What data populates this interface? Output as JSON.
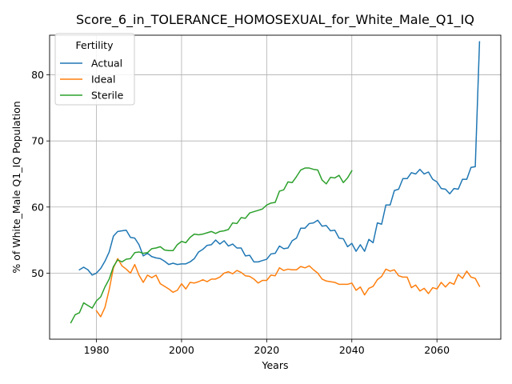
{
  "chart_data": {
    "type": "line",
    "title": "Score_6_in_TOLERANCE_HOMOSEXUAL_for_White_Male_Q1_IQ",
    "xlabel": "Years",
    "ylabel": "% of White_Male Q1_IQ Population",
    "xlim": [
      1969,
      2075
    ],
    "ylim": [
      40,
      86
    ],
    "xticks": [
      1980,
      2000,
      2020,
      2040,
      2060
    ],
    "yticks": [
      50,
      60,
      70,
      80
    ],
    "grid": true,
    "legend": {
      "title": "Fertility",
      "position": "upper-left"
    },
    "series": [
      {
        "name": "Actual",
        "color": "#1f77b4",
        "points": [
          [
            1976,
            50.5
          ],
          [
            1977,
            50.9
          ],
          [
            1978,
            50.5
          ],
          [
            1979,
            49.7
          ],
          [
            1980,
            50.0
          ],
          [
            1981,
            50.7
          ],
          [
            1982,
            51.8
          ],
          [
            1983,
            53.2
          ],
          [
            1984,
            55.6
          ],
          [
            1985,
            56.3
          ],
          [
            1986,
            56.4
          ],
          [
            1987,
            56.5
          ],
          [
            1988,
            55.4
          ],
          [
            1989,
            55.3
          ],
          [
            1990,
            54.3
          ],
          [
            1991,
            52.6
          ],
          [
            1992,
            53.0
          ],
          [
            1993,
            52.5
          ],
          [
            1994,
            52.3
          ],
          [
            1995,
            52.2
          ],
          [
            1996,
            51.8
          ],
          [
            1997,
            51.3
          ],
          [
            1998,
            51.5
          ],
          [
            1999,
            51.3
          ],
          [
            2000,
            51.4
          ],
          [
            2001,
            51.4
          ],
          [
            2002,
            51.7
          ],
          [
            2003,
            52.2
          ],
          [
            2004,
            53.2
          ],
          [
            2005,
            53.6
          ],
          [
            2006,
            54.2
          ],
          [
            2007,
            54.3
          ],
          [
            2008,
            55.0
          ],
          [
            2009,
            54.4
          ],
          [
            2010,
            54.9
          ],
          [
            2011,
            54.1
          ],
          [
            2012,
            54.4
          ],
          [
            2013,
            53.8
          ],
          [
            2014,
            53.8
          ],
          [
            2015,
            52.6
          ],
          [
            2016,
            52.7
          ],
          [
            2017,
            51.7
          ],
          [
            2018,
            51.7
          ],
          [
            2019,
            51.9
          ],
          [
            2020,
            52.1
          ],
          [
            2021,
            52.9
          ],
          [
            2022,
            53.0
          ],
          [
            2023,
            54.1
          ],
          [
            2024,
            53.7
          ],
          [
            2025,
            53.8
          ],
          [
            2026,
            54.9
          ],
          [
            2027,
            55.3
          ],
          [
            2028,
            56.8
          ],
          [
            2029,
            56.8
          ],
          [
            2030,
            57.5
          ],
          [
            2031,
            57.6
          ],
          [
            2032,
            58.0
          ],
          [
            2033,
            57.1
          ],
          [
            2034,
            57.2
          ],
          [
            2035,
            56.4
          ],
          [
            2036,
            56.5
          ],
          [
            2037,
            55.3
          ],
          [
            2038,
            55.2
          ],
          [
            2039,
            54.0
          ],
          [
            2040,
            54.5
          ],
          [
            2041,
            53.3
          ],
          [
            2042,
            54.3
          ],
          [
            2043,
            53.3
          ],
          [
            2044,
            55.1
          ],
          [
            2045,
            54.6
          ],
          [
            2046,
            57.6
          ],
          [
            2047,
            57.4
          ],
          [
            2048,
            60.3
          ],
          [
            2049,
            60.3
          ],
          [
            2050,
            62.5
          ],
          [
            2051,
            62.7
          ],
          [
            2052,
            64.3
          ],
          [
            2053,
            64.3
          ],
          [
            2054,
            65.2
          ],
          [
            2055,
            65.0
          ],
          [
            2056,
            65.7
          ],
          [
            2057,
            65.0
          ],
          [
            2058,
            65.3
          ],
          [
            2059,
            64.2
          ],
          [
            2060,
            63.8
          ],
          [
            2061,
            62.8
          ],
          [
            2062,
            62.7
          ],
          [
            2063,
            62.0
          ],
          [
            2064,
            62.8
          ],
          [
            2065,
            62.7
          ],
          [
            2066,
            64.2
          ],
          [
            2067,
            64.2
          ],
          [
            2068,
            66.0
          ],
          [
            2069,
            66.1
          ],
          [
            2070,
            85.0
          ]
        ]
      },
      {
        "name": "Ideal",
        "color": "#ff7f0e",
        "points": [
          [
            1980,
            44.3
          ],
          [
            1981,
            43.4
          ],
          [
            1982,
            44.8
          ],
          [
            1983,
            47.5
          ],
          [
            1984,
            50.8
          ],
          [
            1985,
            52.2
          ],
          [
            1986,
            51.1
          ],
          [
            1987,
            50.6
          ],
          [
            1988,
            50.0
          ],
          [
            1989,
            51.3
          ],
          [
            1990,
            49.7
          ],
          [
            1991,
            48.6
          ],
          [
            1992,
            49.7
          ],
          [
            1993,
            49.3
          ],
          [
            1994,
            49.7
          ],
          [
            1995,
            48.4
          ],
          [
            1996,
            48.0
          ],
          [
            1997,
            47.6
          ],
          [
            1998,
            47.1
          ],
          [
            1999,
            47.4
          ],
          [
            2000,
            48.4
          ],
          [
            2001,
            47.6
          ],
          [
            2002,
            48.6
          ],
          [
            2003,
            48.5
          ],
          [
            2004,
            48.7
          ],
          [
            2005,
            49.0
          ],
          [
            2006,
            48.7
          ],
          [
            2007,
            49.1
          ],
          [
            2008,
            49.1
          ],
          [
            2009,
            49.4
          ],
          [
            2010,
            50.0
          ],
          [
            2011,
            50.2
          ],
          [
            2012,
            49.9
          ],
          [
            2013,
            50.4
          ],
          [
            2014,
            50.1
          ],
          [
            2015,
            49.6
          ],
          [
            2016,
            49.5
          ],
          [
            2017,
            49.1
          ],
          [
            2018,
            48.5
          ],
          [
            2019,
            48.9
          ],
          [
            2020,
            48.9
          ],
          [
            2021,
            49.7
          ],
          [
            2022,
            49.6
          ],
          [
            2023,
            50.8
          ],
          [
            2024,
            50.4
          ],
          [
            2025,
            50.6
          ],
          [
            2026,
            50.5
          ],
          [
            2027,
            50.5
          ],
          [
            2028,
            51.0
          ],
          [
            2029,
            50.8
          ],
          [
            2030,
            51.1
          ],
          [
            2031,
            50.5
          ],
          [
            2032,
            50.0
          ],
          [
            2033,
            49.1
          ],
          [
            2034,
            48.8
          ],
          [
            2035,
            48.7
          ],
          [
            2036,
            48.6
          ],
          [
            2037,
            48.3
          ],
          [
            2038,
            48.3
          ],
          [
            2039,
            48.3
          ],
          [
            2040,
            48.5
          ],
          [
            2041,
            47.4
          ],
          [
            2042,
            47.9
          ],
          [
            2043,
            46.7
          ],
          [
            2044,
            47.7
          ],
          [
            2045,
            48.0
          ],
          [
            2046,
            49.0
          ],
          [
            2047,
            49.5
          ],
          [
            2048,
            50.6
          ],
          [
            2049,
            50.3
          ],
          [
            2050,
            50.5
          ],
          [
            2051,
            49.6
          ],
          [
            2052,
            49.4
          ],
          [
            2053,
            49.4
          ],
          [
            2054,
            47.8
          ],
          [
            2055,
            48.2
          ],
          [
            2056,
            47.3
          ],
          [
            2057,
            47.7
          ],
          [
            2058,
            46.9
          ],
          [
            2059,
            47.8
          ],
          [
            2060,
            47.6
          ],
          [
            2061,
            48.6
          ],
          [
            2062,
            47.9
          ],
          [
            2063,
            48.6
          ],
          [
            2064,
            48.3
          ],
          [
            2065,
            49.8
          ],
          [
            2066,
            49.2
          ],
          [
            2067,
            50.3
          ],
          [
            2068,
            49.4
          ],
          [
            2069,
            49.2
          ],
          [
            2070,
            48.0
          ]
        ]
      },
      {
        "name": "Sterile",
        "color": "#2ca02c",
        "points": [
          [
            1974,
            42.5
          ],
          [
            1975,
            43.7
          ],
          [
            1976,
            44.0
          ],
          [
            1977,
            45.5
          ],
          [
            1978,
            45.1
          ],
          [
            1979,
            44.7
          ],
          [
            1980,
            45.8
          ],
          [
            1981,
            46.4
          ],
          [
            1982,
            47.9
          ],
          [
            1983,
            49.1
          ],
          [
            1984,
            51.0
          ],
          [
            1985,
            52.0
          ],
          [
            1986,
            51.7
          ],
          [
            1987,
            52.1
          ],
          [
            1988,
            52.2
          ],
          [
            1989,
            53.1
          ],
          [
            1990,
            53.2
          ],
          [
            1991,
            53.0
          ],
          [
            1992,
            53.1
          ],
          [
            1993,
            53.7
          ],
          [
            1994,
            53.8
          ],
          [
            1995,
            54.0
          ],
          [
            1996,
            53.5
          ],
          [
            1997,
            53.4
          ],
          [
            1998,
            53.4
          ],
          [
            1999,
            54.3
          ],
          [
            2000,
            54.8
          ],
          [
            2001,
            54.6
          ],
          [
            2002,
            55.4
          ],
          [
            2003,
            55.9
          ],
          [
            2004,
            55.8
          ],
          [
            2005,
            55.9
          ],
          [
            2006,
            56.1
          ],
          [
            2007,
            56.3
          ],
          [
            2008,
            56.0
          ],
          [
            2009,
            56.3
          ],
          [
            2010,
            56.4
          ],
          [
            2011,
            56.6
          ],
          [
            2012,
            57.6
          ],
          [
            2013,
            57.5
          ],
          [
            2014,
            58.4
          ],
          [
            2015,
            58.3
          ],
          [
            2016,
            59.1
          ],
          [
            2017,
            59.3
          ],
          [
            2018,
            59.5
          ],
          [
            2019,
            59.7
          ],
          [
            2020,
            60.3
          ],
          [
            2021,
            60.6
          ],
          [
            2022,
            60.7
          ],
          [
            2023,
            62.4
          ],
          [
            2024,
            62.6
          ],
          [
            2025,
            63.8
          ],
          [
            2026,
            63.7
          ],
          [
            2027,
            64.6
          ],
          [
            2028,
            65.6
          ],
          [
            2029,
            65.9
          ],
          [
            2030,
            65.9
          ],
          [
            2031,
            65.7
          ],
          [
            2032,
            65.6
          ],
          [
            2033,
            64.1
          ],
          [
            2034,
            63.5
          ],
          [
            2035,
            64.5
          ],
          [
            2036,
            64.4
          ],
          [
            2037,
            64.8
          ],
          [
            2038,
            63.7
          ],
          [
            2039,
            64.4
          ],
          [
            2040,
            65.5
          ]
        ]
      }
    ]
  }
}
